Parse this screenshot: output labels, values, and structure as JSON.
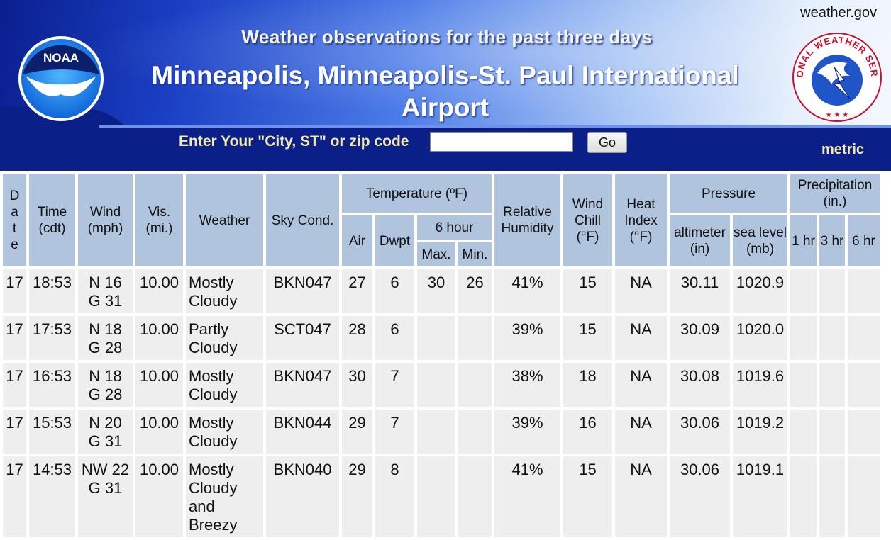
{
  "header": {
    "site_link": "weather.gov",
    "heading": "Weather observations for the past three days",
    "station": "Minneapolis, Minneapolis-St. Paul International Airport",
    "noaa_logo_text": "NOAA",
    "nws_logo_text": "NATIONAL WEATHER SERVICE"
  },
  "search": {
    "label": "Enter Your \"City, ST\" or zip code",
    "value": "",
    "button": "Go"
  },
  "metric_link": "metric",
  "table": {
    "headers": {
      "date": "D a t e",
      "time": "Time (cdt)",
      "wind": "Wind (mph)",
      "vis": "Vis. (mi.)",
      "weather": "Weather",
      "sky": "Sky Cond.",
      "temperature": "Temperature (ºF)",
      "air": "Air",
      "dwpt": "Dwpt",
      "six_hour": "6 hour",
      "max": "Max.",
      "min": "Min.",
      "humidity": "Relative Humidity",
      "wind_chill": "Wind Chill (°F)",
      "heat_index": "Heat Index (°F)",
      "pressure": "Pressure",
      "altimeter": "altimeter (in)",
      "sea_level": "sea level (mb)",
      "precip": "Precipitation (in.)",
      "p1": "1 hr",
      "p3": "3 hr",
      "p6": "6 hr"
    },
    "rows": [
      {
        "date": "17",
        "time": "18:53",
        "wind": "N 16 G 31",
        "vis": "10.00",
        "weather": "Mostly Cloudy",
        "sky": "BKN047",
        "air": "27",
        "dwpt": "6",
        "max": "30",
        "min": "26",
        "humidity": "41%",
        "wind_chill": "15",
        "heat_index": "NA",
        "altimeter": "30.11",
        "sea_level": "1020.9",
        "p1": "",
        "p3": "",
        "p6": ""
      },
      {
        "date": "17",
        "time": "17:53",
        "wind": "N 18 G 28",
        "vis": "10.00",
        "weather": "Partly Cloudy",
        "sky": "SCT047",
        "air": "28",
        "dwpt": "6",
        "max": "",
        "min": "",
        "humidity": "39%",
        "wind_chill": "15",
        "heat_index": "NA",
        "altimeter": "30.09",
        "sea_level": "1020.0",
        "p1": "",
        "p3": "",
        "p6": ""
      },
      {
        "date": "17",
        "time": "16:53",
        "wind": "N 18 G 28",
        "vis": "10.00",
        "weather": "Mostly Cloudy",
        "sky": "BKN047",
        "air": "30",
        "dwpt": "7",
        "max": "",
        "min": "",
        "humidity": "38%",
        "wind_chill": "18",
        "heat_index": "NA",
        "altimeter": "30.08",
        "sea_level": "1019.6",
        "p1": "",
        "p3": "",
        "p6": ""
      },
      {
        "date": "17",
        "time": "15:53",
        "wind": "N 20 G 31",
        "vis": "10.00",
        "weather": "Mostly Cloudy",
        "sky": "BKN044",
        "air": "29",
        "dwpt": "7",
        "max": "",
        "min": "",
        "humidity": "39%",
        "wind_chill": "16",
        "heat_index": "NA",
        "altimeter": "30.06",
        "sea_level": "1019.2",
        "p1": "",
        "p3": "",
        "p6": ""
      },
      {
        "date": "17",
        "time": "14:53",
        "wind": "NW 22 G 31",
        "vis": "10.00",
        "weather": "Mostly Cloudy and Breezy",
        "sky": "BKN040",
        "air": "29",
        "dwpt": "8",
        "max": "",
        "min": "",
        "humidity": "41%",
        "wind_chill": "15",
        "heat_index": "NA",
        "altimeter": "30.06",
        "sea_level": "1019.1",
        "p1": "",
        "p3": "",
        "p6": ""
      }
    ]
  }
}
